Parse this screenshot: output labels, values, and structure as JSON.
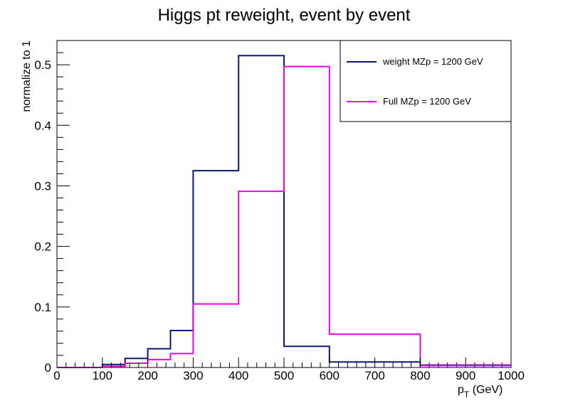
{
  "chart_data": {
    "type": "histogram-step",
    "title": "Higgs pt reweight, event by event",
    "ylabel": "normalize to 1",
    "xlabel_main": "p",
    "xlabel_sub": "T",
    "xlabel_unit": " (GeV)",
    "xlim": [
      0,
      1000
    ],
    "ylim": [
      0,
      0.54
    ],
    "grid": false,
    "legend_position": "top-right",
    "x_ticks": [
      "0",
      "100",
      "200",
      "300",
      "400",
      "500",
      "600",
      "700",
      "800",
      "900",
      "1000"
    ],
    "y_ticks": [
      "0",
      "0.1",
      "0.2",
      "0.3",
      "0.4",
      "0.5"
    ],
    "bin_edges": [
      0,
      50,
      100,
      150,
      200,
      250,
      300,
      400,
      500,
      600,
      800,
      1000
    ],
    "series": [
      {
        "name": "weight MZp = 1200 GeV",
        "color": "#0a1a70",
        "values": [
          0.0,
          0.0,
          0.005,
          0.015,
          0.031,
          0.061,
          0.325,
          0.515,
          0.035,
          0.009,
          0.004
        ]
      },
      {
        "name": "Full MZp = 1200 GeV",
        "color": "#ee00ee",
        "values": [
          0.0,
          0.0,
          0.002,
          0.007,
          0.013,
          0.023,
          0.105,
          0.291,
          0.497,
          0.055,
          0.003
        ]
      }
    ]
  }
}
